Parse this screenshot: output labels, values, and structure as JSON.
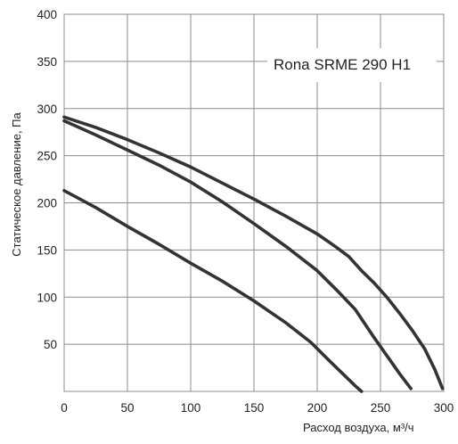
{
  "chart_data": {
    "type": "line",
    "title": "Rona SRME 290 H1",
    "xlabel": "Расход воздуха, м³/ч",
    "ylabel": "Статическое давление, Па",
    "xlim": [
      0,
      300
    ],
    "ylim": [
      0,
      400
    ],
    "xticks": [
      "0",
      "50",
      "100",
      "150",
      "200",
      "250",
      "300"
    ],
    "yticks": [
      "50",
      "100",
      "150",
      "200",
      "250",
      "300",
      "350",
      "400"
    ],
    "grid": true,
    "line_color": "#333333",
    "series": [
      {
        "x": [
          0,
          25,
          50,
          75,
          100,
          125,
          150,
          175,
          200,
          215,
          225,
          235,
          245,
          255,
          265,
          275,
          285,
          293,
          299
        ],
        "y": [
          291,
          280,
          267,
          253,
          238,
          221,
          204,
          186,
          167,
          153,
          143,
          128,
          115,
          100,
          83,
          65,
          45,
          23,
          3
        ]
      },
      {
        "x": [
          0,
          25,
          50,
          75,
          100,
          125,
          150,
          175,
          200,
          215,
          230,
          245,
          255,
          265,
          274
        ],
        "y": [
          287,
          272,
          256,
          240,
          222,
          201,
          178,
          154,
          128,
          108,
          87,
          57,
          38,
          19,
          3
        ]
      },
      {
        "x": [
          0,
          25,
          50,
          75,
          100,
          125,
          150,
          175,
          195,
          210,
          220,
          230,
          235
        ],
        "y": [
          213,
          195,
          175,
          156,
          136,
          117,
          96,
          73,
          52,
          32,
          19,
          6,
          0
        ]
      }
    ]
  }
}
